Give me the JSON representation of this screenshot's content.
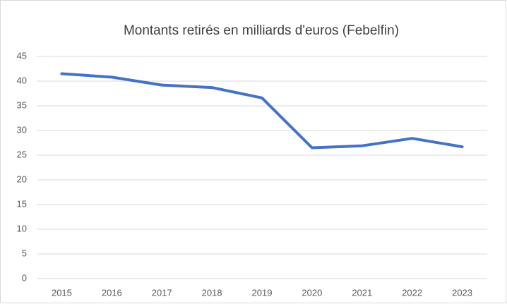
{
  "chart_data": {
    "type": "line",
    "title": "Montants retirés en milliards d'euros (Febelfin)",
    "categories": [
      "2015",
      "2016",
      "2017",
      "2018",
      "2019",
      "2020",
      "2021",
      "2022",
      "2023"
    ],
    "series": [
      {
        "color": "#4472c4",
        "values": [
          41.5,
          40.8,
          39.2,
          38.7,
          36.6,
          26.5,
          26.9,
          28.4,
          26.7
        ]
      }
    ],
    "ylim": [
      0,
      45
    ],
    "yticks": [
      0,
      5,
      10,
      15,
      20,
      25,
      30,
      35,
      40,
      45
    ],
    "grid": true
  }
}
